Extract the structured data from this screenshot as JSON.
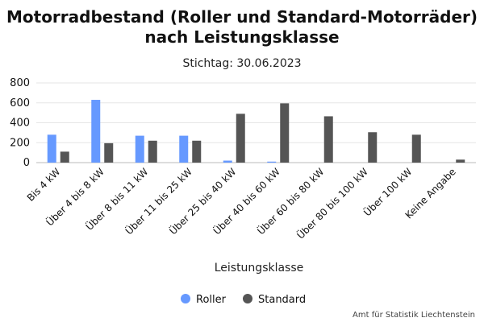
{
  "chart_data": {
    "type": "bar",
    "title_line1": "Motorradbestand (Roller und Standard-Motorräder)",
    "title_line2": "nach Leistungsklasse",
    "subtitle": "Stichtag: 30.06.2023",
    "xlabel": "Leistungsklasse",
    "ylabel": "",
    "ylim": [
      0,
      800
    ],
    "yticks": [
      0,
      200,
      400,
      600,
      800
    ],
    "grid": true,
    "legend_position": "bottom",
    "categories": [
      "Bis 4 kW",
      "Über 4 bis 8 kW",
      "Über 8 bis 11 kW",
      "Über 11 bis 25 kW",
      "Über 25 bis 40 kW",
      "Über 40 bis 60 kW",
      "Über 60 bis 80 kW",
      "Über 80 bis 100 kW",
      "Über 100 kW",
      "Keine Angabe"
    ],
    "series": [
      {
        "name": "Roller",
        "color": "#6699ff",
        "values": [
          280,
          630,
          270,
          270,
          20,
          10,
          0,
          0,
          0,
          0
        ]
      },
      {
        "name": "Standard",
        "color": "#555555",
        "values": [
          110,
          195,
          220,
          220,
          490,
          595,
          465,
          305,
          280,
          30
        ]
      }
    ],
    "credit": "Amt für Statistik Liechtenstein"
  }
}
